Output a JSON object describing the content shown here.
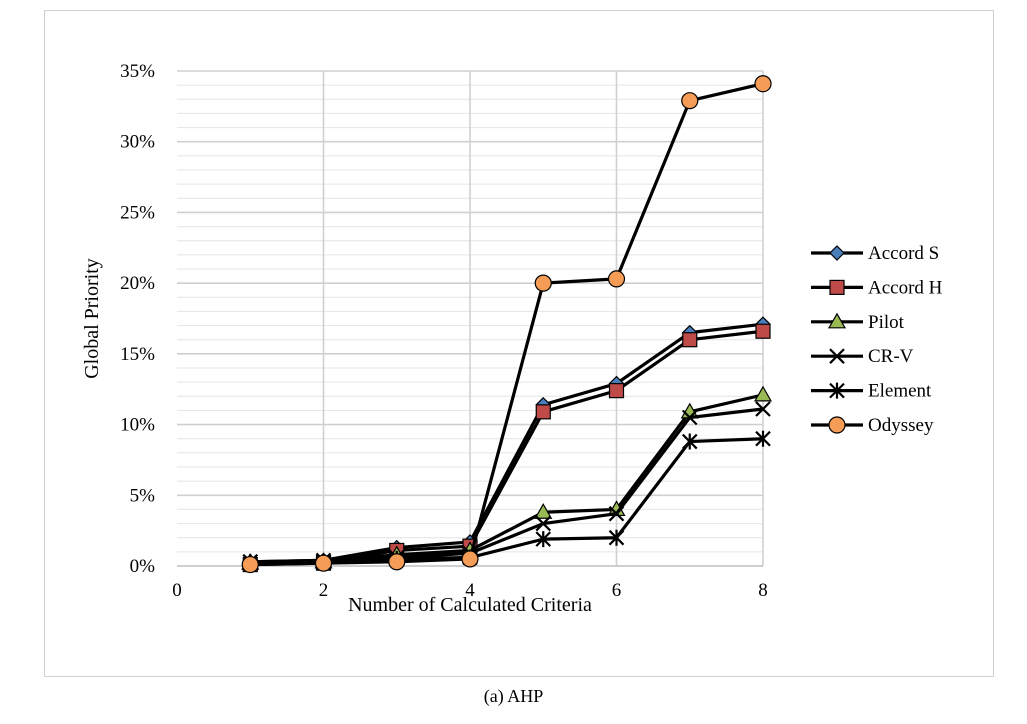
{
  "caption": "(a) AHP",
  "colors": {
    "line": "#000000",
    "accord_s": "#4a7ebb",
    "accord_h": "#be4b48",
    "pilot": "#98b954",
    "odyssey": "#f59d56",
    "minor_grid": "#e4e4e4",
    "major_grid": "#d0d0d0"
  },
  "chart_data": {
    "type": "line",
    "xlabel": "Number of Calculated Criteria",
    "ylabel": "Global Priority",
    "xlim": [
      0,
      8
    ],
    "ylim": [
      0,
      35
    ],
    "x_ticks": [
      "0",
      "2",
      "4",
      "6",
      "8"
    ],
    "y_ticks": [
      "0%",
      "5%",
      "10%",
      "15%",
      "20%",
      "25%",
      "30%",
      "35%"
    ],
    "x": [
      1,
      2,
      3,
      4,
      5,
      6,
      7,
      8
    ],
    "legend_position": "right",
    "grid": true,
    "series": [
      {
        "name": "Accord S",
        "marker": "diamond",
        "values": [
          0.3,
          0.4,
          1.3,
          1.7,
          11.4,
          12.9,
          16.5,
          17.1
        ]
      },
      {
        "name": "Accord H",
        "marker": "square",
        "values": [
          0.1,
          0.2,
          1.1,
          1.4,
          10.9,
          12.4,
          16.0,
          16.6
        ]
      },
      {
        "name": "Pilot",
        "marker": "triangle",
        "values": [
          0.2,
          0.3,
          0.8,
          1.1,
          3.8,
          4.0,
          10.9,
          12.1
        ]
      },
      {
        "name": "CR-V",
        "marker": "x",
        "values": [
          0.3,
          0.4,
          0.6,
          0.9,
          3.0,
          3.7,
          10.5,
          11.1
        ]
      },
      {
        "name": "Element",
        "marker": "star",
        "values": [
          0.3,
          0.3,
          0.5,
          0.6,
          1.9,
          2.0,
          8.8,
          9.0
        ]
      },
      {
        "name": "Odyssey",
        "marker": "circle",
        "values": [
          0.1,
          0.2,
          0.3,
          0.5,
          20.0,
          20.3,
          32.9,
          34.1
        ]
      }
    ]
  }
}
